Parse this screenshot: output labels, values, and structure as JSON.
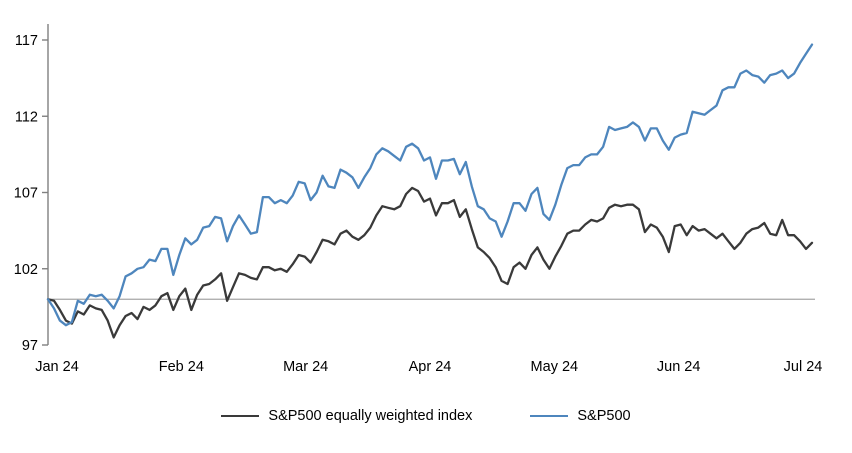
{
  "chart_data": {
    "type": "line",
    "title": "",
    "xlabel": "",
    "ylabel": "",
    "y_ticks": [
      97,
      102,
      107,
      112,
      117
    ],
    "ylim": [
      97,
      118.1
    ],
    "x_tick_labels": [
      "Jan 24",
      "Feb 24",
      "Mar 24",
      "Apr 24",
      "May 24",
      "Jun 24",
      "Jul 24"
    ],
    "baseline_value": 100,
    "grid": "single horizontal gridline at 100",
    "legend_position": "bottom-center",
    "index_base": "100 = start of Jan 2024",
    "dates": [
      "12-29",
      "01-02",
      "01-03",
      "01-04",
      "01-05",
      "01-08",
      "01-09",
      "01-10",
      "01-11",
      "01-12",
      "01-16",
      "01-17",
      "01-18",
      "01-19",
      "01-22",
      "01-23",
      "01-24",
      "01-25",
      "01-26",
      "01-29",
      "01-30",
      "01-31",
      "02-01",
      "02-02",
      "02-05",
      "02-06",
      "02-07",
      "02-08",
      "02-09",
      "02-12",
      "02-13",
      "02-14",
      "02-15",
      "02-16",
      "02-20",
      "02-21",
      "02-22",
      "02-23",
      "02-26",
      "02-27",
      "02-28",
      "02-29",
      "03-01",
      "03-04",
      "03-05",
      "03-06",
      "03-07",
      "03-08",
      "03-11",
      "03-12",
      "03-13",
      "03-14",
      "03-15",
      "03-18",
      "03-19",
      "03-20",
      "03-21",
      "03-22",
      "03-25",
      "03-26",
      "03-27",
      "03-28",
      "04-01",
      "04-02",
      "04-03",
      "04-04",
      "04-05",
      "04-08",
      "04-09",
      "04-10",
      "04-11",
      "04-12",
      "04-15",
      "04-16",
      "04-17",
      "04-18",
      "04-19",
      "04-22",
      "04-23",
      "04-24",
      "04-25",
      "04-26",
      "04-29",
      "04-30",
      "05-01",
      "05-02",
      "05-03",
      "05-06",
      "05-07",
      "05-08",
      "05-09",
      "05-10",
      "05-13",
      "05-14",
      "05-15",
      "05-16",
      "05-17",
      "05-20",
      "05-21",
      "05-22",
      "05-23",
      "05-24",
      "05-28",
      "05-29",
      "05-30",
      "05-31",
      "06-03",
      "06-04",
      "06-05",
      "06-06",
      "06-07",
      "06-10",
      "06-11",
      "06-12",
      "06-13",
      "06-14",
      "06-17",
      "06-18",
      "06-20",
      "06-21",
      "06-24",
      "06-25",
      "06-26",
      "06-27",
      "06-28",
      "07-01",
      "07-02",
      "07-03",
      "07-05"
    ],
    "series": [
      {
        "name": "S&P500 equally weighted index",
        "color": "#3a3a3a",
        "values": [
          100.0,
          99.9,
          99.3,
          98.6,
          98.4,
          99.2,
          99.0,
          99.6,
          99.4,
          99.3,
          98.6,
          97.5,
          98.3,
          98.9,
          99.1,
          98.7,
          99.5,
          99.3,
          99.6,
          100.2,
          100.4,
          99.3,
          100.2,
          100.7,
          99.3,
          100.3,
          100.9,
          101.0,
          101.3,
          101.7,
          99.9,
          100.8,
          101.7,
          101.6,
          101.4,
          101.3,
          102.1,
          102.1,
          101.9,
          102.0,
          101.8,
          102.3,
          102.9,
          102.8,
          102.4,
          103.1,
          103.9,
          103.8,
          103.6,
          104.3,
          104.5,
          104.1,
          103.9,
          104.2,
          104.7,
          105.5,
          106.1,
          106.0,
          105.9,
          106.1,
          106.9,
          107.3,
          107.1,
          106.4,
          106.6,
          105.5,
          106.3,
          106.3,
          106.5,
          105.4,
          105.9,
          104.6,
          103.4,
          103.1,
          102.7,
          102.1,
          101.2,
          101.0,
          102.1,
          102.4,
          102.0,
          102.9,
          103.4,
          102.6,
          102.0,
          102.8,
          103.5,
          104.3,
          104.5,
          104.5,
          104.9,
          105.2,
          105.1,
          105.3,
          106.0,
          106.2,
          106.1,
          106.2,
          106.2,
          105.9,
          104.4,
          104.9,
          104.7,
          104.1,
          103.1,
          104.8,
          104.9,
          104.2,
          104.8,
          104.5,
          104.6,
          104.3,
          104.0,
          104.3,
          103.8,
          103.3,
          103.7,
          104.3,
          104.6,
          104.7,
          105.0,
          104.3,
          104.2,
          105.2,
          104.2,
          104.2,
          103.8,
          103.3,
          103.7
        ]
      },
      {
        "name": "S&P500",
        "color": "#4e86bd",
        "values": [
          100.0,
          99.4,
          98.6,
          98.3,
          98.5,
          99.9,
          99.7,
          100.3,
          100.2,
          100.3,
          99.9,
          99.4,
          100.2,
          101.5,
          101.7,
          102.0,
          102.1,
          102.6,
          102.5,
          103.3,
          103.3,
          101.6,
          102.9,
          104.0,
          103.6,
          103.9,
          104.7,
          104.8,
          105.4,
          105.3,
          103.8,
          104.8,
          105.5,
          104.9,
          104.3,
          104.4,
          106.7,
          106.7,
          106.3,
          106.5,
          106.3,
          106.8,
          107.7,
          107.6,
          106.5,
          107.0,
          108.1,
          107.4,
          107.3,
          108.5,
          108.3,
          108.0,
          107.3,
          108.0,
          108.6,
          109.5,
          109.9,
          109.7,
          109.4,
          109.1,
          110.0,
          110.2,
          109.9,
          109.1,
          109.3,
          107.9,
          109.1,
          109.1,
          109.2,
          108.2,
          109.0,
          107.4,
          106.1,
          105.9,
          105.3,
          105.1,
          104.1,
          105.1,
          106.3,
          106.3,
          105.8,
          106.9,
          107.3,
          105.6,
          105.2,
          106.2,
          107.5,
          108.6,
          108.8,
          108.8,
          109.3,
          109.5,
          109.5,
          110.0,
          111.3,
          111.1,
          111.2,
          111.3,
          111.6,
          111.3,
          110.4,
          111.2,
          111.2,
          110.4,
          109.8,
          110.6,
          110.8,
          110.9,
          112.3,
          112.2,
          112.1,
          112.4,
          112.7,
          113.7,
          113.9,
          113.9,
          114.8,
          115.0,
          114.7,
          114.6,
          114.2,
          114.7,
          114.8,
          115.0,
          114.5,
          114.8,
          115.5,
          116.1,
          116.7
        ]
      }
    ]
  },
  "colors": {
    "axis": "#808080",
    "gridline": "#a6a6a6",
    "text": "#000000",
    "background": "#ffffff"
  }
}
